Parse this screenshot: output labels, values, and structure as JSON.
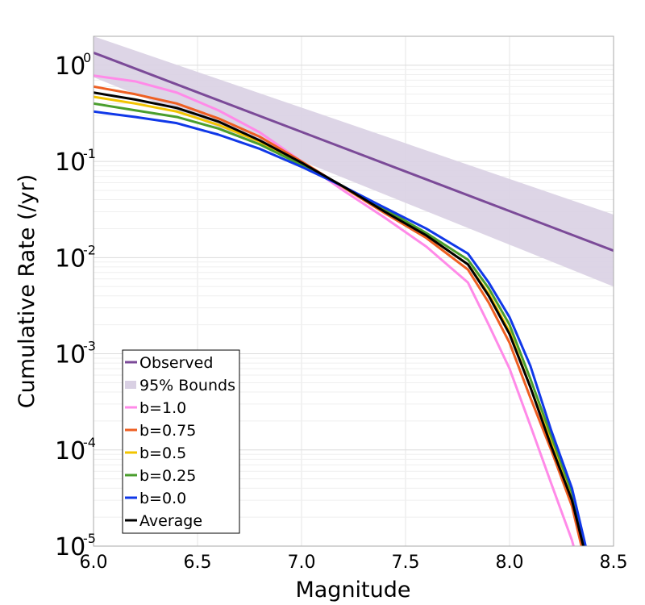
{
  "chart_data": {
    "type": "line",
    "xlabel": "Magnitude",
    "ylabel": "Cumulative Rate (/yr)",
    "xlim": [
      6.0,
      8.5
    ],
    "ylim": [
      1e-05,
      2.0
    ],
    "yscale": "log",
    "grid": true,
    "legend_position": "bottom-left",
    "x_ticks": [
      {
        "value": 6.0,
        "label": "6.0"
      },
      {
        "value": 6.5,
        "label": "6.5"
      },
      {
        "value": 7.0,
        "label": "7.0"
      },
      {
        "value": 7.5,
        "label": "7.5"
      },
      {
        "value": 8.0,
        "label": "8.0"
      },
      {
        "value": 8.5,
        "label": "8.5"
      }
    ],
    "y_ticks": [
      {
        "value": 1,
        "base": "10",
        "exp": "0"
      },
      {
        "value": 0.1,
        "base": "10",
        "exp": "-1"
      },
      {
        "value": 0.01,
        "base": "10",
        "exp": "-2"
      },
      {
        "value": 0.001,
        "base": "10",
        "exp": "-3"
      },
      {
        "value": 0.0001,
        "base": "10",
        "exp": "-4"
      },
      {
        "value": 1e-05,
        "base": "10",
        "exp": "-5"
      }
    ],
    "band": {
      "name": "95% Bounds",
      "color": "#d9d0e3",
      "x": [
        6.0,
        8.5
      ],
      "lower": [
        0.75,
        0.005
      ],
      "upper": [
        2.0,
        0.028
      ]
    },
    "series": [
      {
        "name": "Observed",
        "color": "#7b4a98",
        "x": [
          6.0,
          8.5
        ],
        "y": [
          1.35,
          0.0118
        ]
      },
      {
        "name": "b=1.0",
        "color": "#ff8ae8",
        "x": [
          6.0,
          6.2,
          6.4,
          6.6,
          6.8,
          7.0,
          7.2,
          7.4,
          7.6,
          7.8,
          7.9,
          8.0,
          8.1,
          8.2,
          8.3,
          8.34
        ],
        "y": [
          0.78,
          0.68,
          0.52,
          0.34,
          0.2,
          0.1,
          0.05,
          0.026,
          0.013,
          0.0055,
          0.002,
          0.0007,
          0.00018,
          4.5e-05,
          1.15e-05,
          5.5e-06
        ]
      },
      {
        "name": "b=0.75",
        "color": "#ee5f22",
        "x": [
          6.0,
          6.2,
          6.4,
          6.6,
          6.8,
          7.0,
          7.2,
          7.4,
          7.6,
          7.8,
          7.9,
          8.0,
          8.1,
          8.2,
          8.3,
          8.37
        ],
        "y": [
          0.6,
          0.5,
          0.4,
          0.28,
          0.18,
          0.1,
          0.054,
          0.029,
          0.016,
          0.0075,
          0.0034,
          0.0013,
          0.00035,
          0.0001,
          2.6e-05,
          6e-06
        ]
      },
      {
        "name": "b=0.5",
        "color": "#f2c400",
        "x": [
          6.0,
          6.2,
          6.4,
          6.6,
          6.8,
          7.0,
          7.2,
          7.4,
          7.6,
          7.8,
          7.9,
          8.0,
          8.1,
          8.2,
          8.3,
          8.38
        ],
        "y": [
          0.47,
          0.4,
          0.33,
          0.24,
          0.16,
          0.095,
          0.055,
          0.03,
          0.017,
          0.0085,
          0.0042,
          0.0017,
          0.00045,
          0.00012,
          3.2e-05,
          6e-06
        ]
      },
      {
        "name": "b=0.25",
        "color": "#4a9e2d",
        "x": [
          6.0,
          6.2,
          6.4,
          6.6,
          6.8,
          7.0,
          7.2,
          7.4,
          7.6,
          7.8,
          7.9,
          8.0,
          8.1,
          8.2,
          8.3,
          8.385
        ],
        "y": [
          0.4,
          0.34,
          0.29,
          0.22,
          0.15,
          0.092,
          0.055,
          0.032,
          0.018,
          0.0095,
          0.0048,
          0.002,
          0.00055,
          0.00014,
          3.6e-05,
          6e-06
        ]
      },
      {
        "name": "b=0.0",
        "color": "#1038e8",
        "x": [
          6.0,
          6.2,
          6.4,
          6.6,
          6.8,
          7.0,
          7.2,
          7.4,
          7.6,
          7.8,
          7.9,
          8.0,
          8.1,
          8.2,
          8.3,
          8.39
        ],
        "y": [
          0.33,
          0.29,
          0.25,
          0.19,
          0.135,
          0.088,
          0.055,
          0.033,
          0.02,
          0.011,
          0.0055,
          0.0024,
          0.00075,
          0.00016,
          4e-05,
          6e-06
        ]
      },
      {
        "name": "Average",
        "color": "#000000",
        "x": [
          6.0,
          6.2,
          6.4,
          6.6,
          6.8,
          7.0,
          7.2,
          7.4,
          7.6,
          7.8,
          7.9,
          8.0,
          8.1,
          8.2,
          8.3,
          8.38
        ],
        "y": [
          0.52,
          0.44,
          0.36,
          0.26,
          0.165,
          0.097,
          0.055,
          0.03,
          0.017,
          0.0085,
          0.004,
          0.0016,
          0.00045,
          0.00011,
          3e-05,
          6e-06
        ]
      }
    ]
  }
}
